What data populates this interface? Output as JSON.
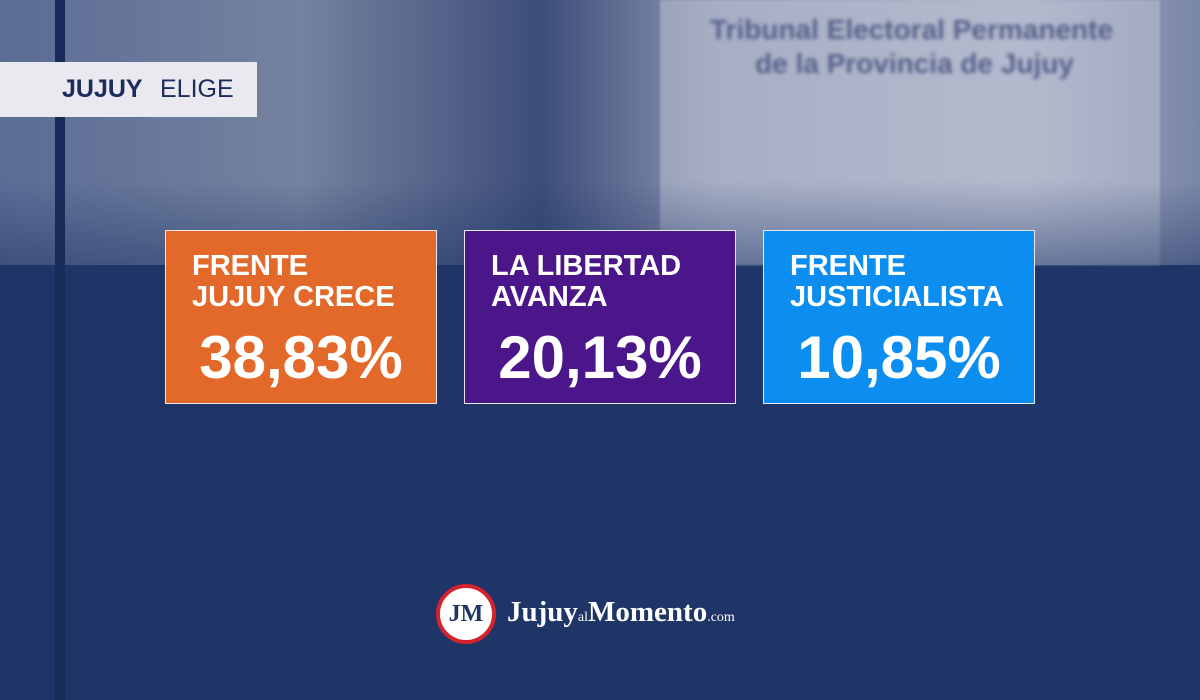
{
  "header": {
    "tag_bold": "JUJUY",
    "tag_rest": "ELIGE"
  },
  "background": {
    "sign_lines": [
      "Tribunal Electoral Permanente",
      "de la Provincia de Jujuy"
    ]
  },
  "results": [
    {
      "name_lines": [
        "FRENTE",
        "JUJUY CRECE"
      ],
      "percent": "38,83%",
      "color": "#e2692a"
    },
    {
      "name_lines": [
        "LA LIBERTAD",
        "AVANZA"
      ],
      "percent": "20,13%",
      "color": "#4b1689"
    },
    {
      "name_lines": [
        "FRENTE",
        "JUSTICIALISTA"
      ],
      "percent": "10,85%",
      "color": "#0b8ef0"
    }
  ],
  "footer": {
    "logo_initials": "JM",
    "brand_a": "Jujuy",
    "brand_b": "al",
    "brand_c": "Momento",
    "brand_d": ".com"
  }
}
